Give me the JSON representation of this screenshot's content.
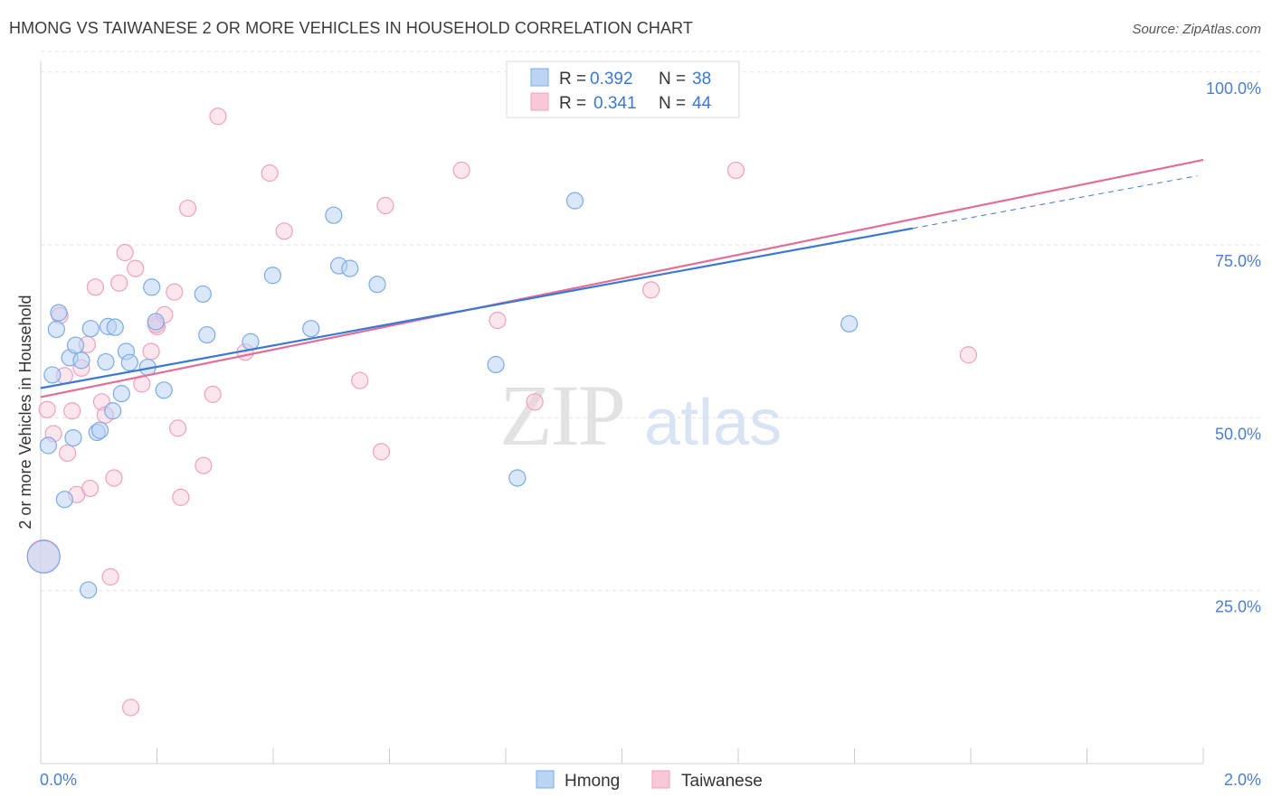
{
  "title": "HMONG VS TAIWANESE 2 OR MORE VEHICLES IN HOUSEHOLD CORRELATION CHART",
  "source": "Source: ZipAtlas.com",
  "watermark": {
    "zip": "ZIP",
    "atlas": "atlas"
  },
  "legend": {
    "r_label": "R =",
    "n_label": "N =",
    "rows": [
      {
        "r": "0.392",
        "n": "38"
      },
      {
        "r": "0.341",
        "n": "44"
      }
    ]
  },
  "chart_data": {
    "type": "scatter",
    "title": "HMONG VS TAIWANESE 2 OR MORE VEHICLES IN HOUSEHOLD CORRELATION CHART",
    "xlabel": "",
    "ylabel": "2 or more Vehicles in Household",
    "xlim": [
      0,
      2.0
    ],
    "ylim": [
      0,
      105
    ],
    "x_tick_labels": [
      "0.0%",
      "2.0%"
    ],
    "y_ticks": [
      25,
      50,
      75,
      100
    ],
    "y_tick_labels": [
      "25.0%",
      "50.0%",
      "75.0%",
      "100.0%"
    ],
    "grid": true,
    "legend_position": "top-center",
    "colors": {
      "hmong": "#7aaae8",
      "taiwanese": "#f0a0bc",
      "hmong_line": "#3a78d4",
      "taiwanese_line": "#e46d96",
      "accent_text": "#4a7fd0"
    },
    "series": [
      {
        "name": "Hmong",
        "r": 0.392,
        "n": 38,
        "trend": {
          "x0": 0.0,
          "y0": 54.3,
          "x1": 1.5,
          "y1": 77.4,
          "dash_x1": 1.99,
          "dash_y1": 85.0
        },
        "points": [
          [
            0.013,
            46.0
          ],
          [
            0.02,
            56.2
          ],
          [
            0.027,
            62.8
          ],
          [
            0.031,
            65.2
          ],
          [
            0.041,
            38.2
          ],
          [
            0.05,
            58.7
          ],
          [
            0.056,
            47.1
          ],
          [
            0.06,
            60.5
          ],
          [
            0.07,
            58.3
          ],
          [
            0.082,
            25.1
          ],
          [
            0.086,
            62.9
          ],
          [
            0.097,
            47.9
          ],
          [
            0.102,
            48.2
          ],
          [
            0.112,
            58.1
          ],
          [
            0.116,
            63.2
          ],
          [
            0.124,
            51.0
          ],
          [
            0.128,
            63.1
          ],
          [
            0.139,
            53.5
          ],
          [
            0.147,
            59.6
          ],
          [
            0.153,
            58.0
          ],
          [
            0.184,
            57.3
          ],
          [
            0.191,
            68.9
          ],
          [
            0.198,
            63.9
          ],
          [
            0.212,
            54.0
          ],
          [
            0.279,
            67.9
          ],
          [
            0.286,
            62.0
          ],
          [
            0.361,
            61.0
          ],
          [
            0.399,
            70.6
          ],
          [
            0.465,
            62.9
          ],
          [
            0.504,
            79.3
          ],
          [
            0.513,
            72.0
          ],
          [
            0.532,
            71.6
          ],
          [
            0.579,
            69.3
          ],
          [
            0.783,
            57.7
          ],
          [
            0.82,
            41.3
          ],
          [
            0.919,
            81.4
          ],
          [
            1.391,
            63.6
          ],
          [
            0.005,
            29.9
          ]
        ]
      },
      {
        "name": "Taiwanese",
        "r": 0.341,
        "n": 44,
        "trend": {
          "x0": 0.0,
          "y0": 53.0,
          "x1": 2.0,
          "y1": 87.3
        },
        "points": [
          [
            0.011,
            51.2
          ],
          [
            0.022,
            47.7
          ],
          [
            0.033,
            64.8
          ],
          [
            0.041,
            56.1
          ],
          [
            0.046,
            44.9
          ],
          [
            0.054,
            51.0
          ],
          [
            0.062,
            38.9
          ],
          [
            0.07,
            57.2
          ],
          [
            0.08,
            60.6
          ],
          [
            0.085,
            39.8
          ],
          [
            0.094,
            68.9
          ],
          [
            0.105,
            52.3
          ],
          [
            0.111,
            50.4
          ],
          [
            0.12,
            27.0
          ],
          [
            0.126,
            41.3
          ],
          [
            0.135,
            69.5
          ],
          [
            0.145,
            73.9
          ],
          [
            0.155,
            8.1
          ],
          [
            0.163,
            71.6
          ],
          [
            0.174,
            54.9
          ],
          [
            0.19,
            59.6
          ],
          [
            0.2,
            63.2
          ],
          [
            0.213,
            64.9
          ],
          [
            0.23,
            68.2
          ],
          [
            0.236,
            48.5
          ],
          [
            0.241,
            38.5
          ],
          [
            0.253,
            80.3
          ],
          [
            0.28,
            43.1
          ],
          [
            0.296,
            53.4
          ],
          [
            0.305,
            93.6
          ],
          [
            0.352,
            59.5
          ],
          [
            0.394,
            85.4
          ],
          [
            0.419,
            77.0
          ],
          [
            0.549,
            55.4
          ],
          [
            0.586,
            45.1
          ],
          [
            0.593,
            80.7
          ],
          [
            0.724,
            85.8
          ],
          [
            0.786,
            64.1
          ],
          [
            0.85,
            52.3
          ],
          [
            1.05,
            68.5
          ],
          [
            1.196,
            85.8
          ],
          [
            1.596,
            59.1
          ],
          [
            0.005,
            30.0
          ],
          [
            0.198,
            63.5
          ]
        ]
      }
    ]
  },
  "bottom_legend": [
    {
      "label": "Hmong"
    },
    {
      "label": "Taiwanese"
    }
  ]
}
